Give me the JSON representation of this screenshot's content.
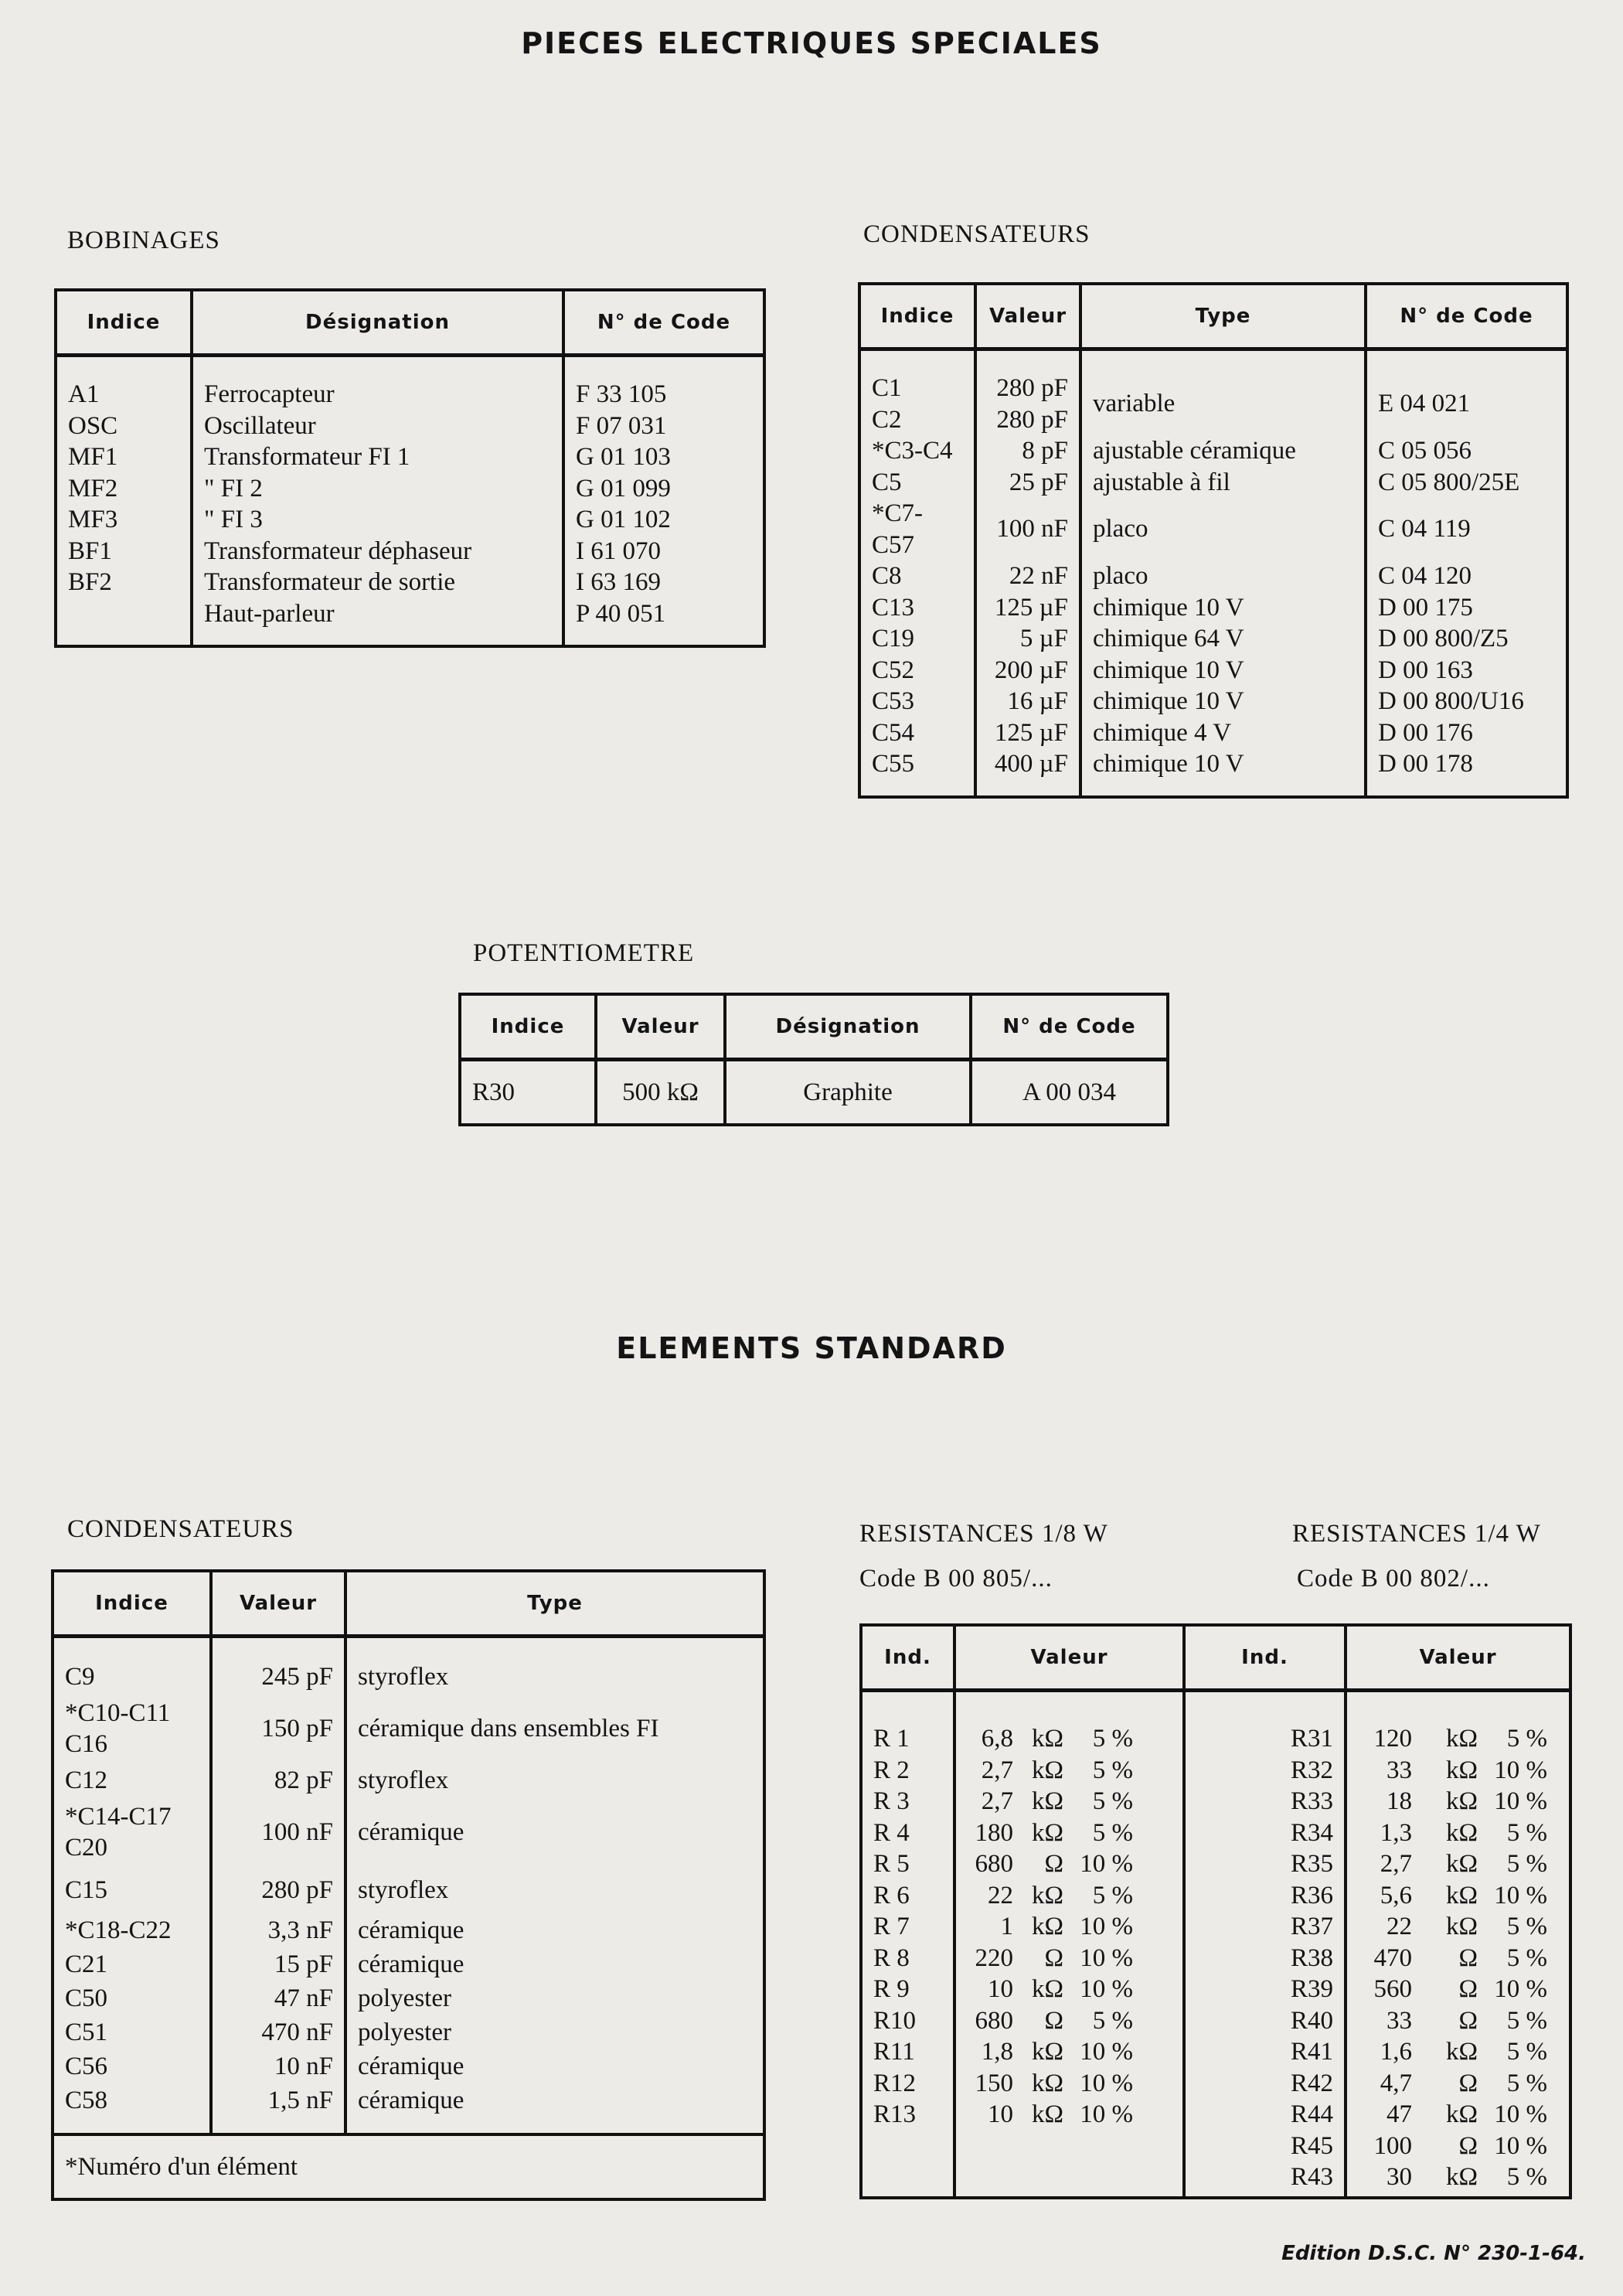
{
  "title": "PIECES ELECTRIQUES SPECIALES",
  "bobinages": {
    "label": "BOBINAGES",
    "headers": [
      "Indice",
      "Désignation",
      "N° de Code"
    ],
    "rows": [
      [
        "A1",
        "Ferrocapteur",
        "F 33 105"
      ],
      [
        "OSC",
        "Oscillateur",
        "F 07 031"
      ],
      [
        "MF1",
        "Transformateur    FI 1",
        "G 01 103"
      ],
      [
        "MF2",
        "              \"              FI 2",
        "G 01 099"
      ],
      [
        "MF3",
        "              \"              FI 3",
        "G 01 102"
      ],
      [
        "BF1",
        "Transformateur déphaseur",
        "I  61 070"
      ],
      [
        "BF2",
        "Transformateur de sortie",
        "I  63 169"
      ],
      [
        "",
        "Haut-parleur",
        "P 40 051"
      ]
    ]
  },
  "condensateurs_speciaux": {
    "label": "CONDENSATEURS",
    "headers": [
      "Indice",
      "Valeur",
      "Type",
      "N° de Code"
    ],
    "rows": [
      [
        "C1\nC2",
        "280 pF\n280 pF",
        "variable",
        "E 04 021"
      ],
      [
        "*C3-C4",
        "8 pF",
        "ajustable céramique",
        "C 05 056"
      ],
      [
        "C5",
        "25 pF",
        "ajustable à fil",
        "C 05 800/25E"
      ],
      [
        "*C7-C57",
        "100 nF",
        "placo",
        "C 04 119"
      ],
      [
        "C8",
        "22 nF",
        "placo",
        "C 04 120"
      ],
      [
        "C13",
        "125 µF",
        "chimique        10 V",
        "D 00 175"
      ],
      [
        "C19",
        "5 µF",
        "chimique        64 V",
        "D 00 800/Z5"
      ],
      [
        "C52",
        "200 µF",
        "chimique        10 V",
        "D 00 163"
      ],
      [
        "C53",
        "16 µF",
        "chimique        10 V",
        "D 00 800/U16"
      ],
      [
        "C54",
        "125 µF",
        "chimique          4 V",
        "D 00 176"
      ],
      [
        "C55",
        "400 µF",
        "chimique        10 V",
        "D 00 178"
      ]
    ]
  },
  "potentiometre": {
    "label": "POTENTIOMETRE",
    "headers": [
      "Indice",
      "Valeur",
      "Désignation",
      "N° de Code"
    ],
    "rows": [
      [
        "R30",
        "500 kΩ",
        "Graphite",
        "A 00 034"
      ]
    ]
  },
  "section2_title": "ELEMENTS STANDARD",
  "condensateurs_standard": {
    "label": "CONDENSATEURS",
    "headers": [
      "Indice",
      "Valeur",
      "Type"
    ],
    "rows": [
      [
        "C9",
        "245    pF",
        "styroflex"
      ],
      [
        "*C10-C11\nC16",
        "150    pF",
        "céramique dans ensembles  FI"
      ],
      [
        "C12",
        "82    pF",
        "styroflex"
      ],
      [
        "*C14-C17\nC20",
        "100    nF",
        "céramique"
      ],
      [
        "C15",
        "280    pF",
        "styroflex"
      ],
      [
        "*C18-C22",
        "3,3 nF",
        "céramique"
      ],
      [
        "C21",
        "15    pF",
        "céramique"
      ],
      [
        "C50",
        "47    nF",
        "polyester"
      ],
      [
        "C51",
        "470    nF",
        "polyester"
      ],
      [
        "C56",
        "10    nF",
        "céramique"
      ],
      [
        "C58",
        "1,5 nF",
        "céramique"
      ]
    ],
    "footnote": "*Numéro d'un élément"
  },
  "resistances_18": {
    "label": "RESISTANCES  1/8 W",
    "code": "Code  B 00 805/..."
  },
  "resistances_14": {
    "label": "RESISTANCES  1/4 W",
    "code": "Code  B 00 802/..."
  },
  "resistances_table": {
    "headers": [
      "Ind.",
      "Valeur",
      "Ind.",
      "Valeur"
    ],
    "left": [
      [
        "R 1",
        "6,8",
        "kΩ",
        "5 %"
      ],
      [
        "R 2",
        "2,7",
        "kΩ",
        "5 %"
      ],
      [
        "R 3",
        "2,7",
        "kΩ",
        "5 %"
      ],
      [
        "R 4",
        "180",
        "kΩ",
        "5 %"
      ],
      [
        "R 5",
        "680",
        "Ω",
        "10 %"
      ],
      [
        "R 6",
        "22",
        "kΩ",
        "5 %"
      ],
      [
        "R 7",
        "1",
        "kΩ",
        "10 %"
      ],
      [
        "R 8",
        "220",
        "Ω",
        "10 %"
      ],
      [
        "R 9",
        "10",
        "kΩ",
        "10 %"
      ],
      [
        "R10",
        "680",
        "Ω",
        "5 %"
      ],
      [
        "R11",
        "1,8",
        "kΩ",
        "10 %"
      ],
      [
        "R12",
        "150",
        "kΩ",
        "10 %"
      ],
      [
        "R13",
        "10",
        "kΩ",
        "10 %"
      ]
    ],
    "right": [
      [
        "R31",
        "120",
        "kΩ",
        "5 %"
      ],
      [
        "R32",
        "33",
        "kΩ",
        "10 %"
      ],
      [
        "R33",
        "18",
        "kΩ",
        "10 %"
      ],
      [
        "R34",
        "1,3",
        "kΩ",
        "5 %"
      ],
      [
        "R35",
        "2,7",
        "kΩ",
        "5 %"
      ],
      [
        "R36",
        "5,6",
        "kΩ",
        "10 %"
      ],
      [
        "R37",
        "22",
        "kΩ",
        "5 %"
      ],
      [
        "R38",
        "470",
        "Ω",
        "5 %"
      ],
      [
        "R39",
        "560",
        "Ω",
        "10 %"
      ],
      [
        "R40",
        "33",
        "Ω",
        "5 %"
      ],
      [
        "R41",
        "1,6",
        "kΩ",
        "5 %"
      ],
      [
        "R42",
        "4,7",
        "Ω",
        "5 %"
      ],
      [
        "R44",
        "47",
        "kΩ",
        "10 %"
      ],
      [
        "R45",
        "100",
        "Ω",
        "10 %"
      ],
      [
        "R43",
        "30",
        "kΩ",
        "5 %"
      ]
    ]
  },
  "edition": "Edition  D.S.C. N° 230-1-64."
}
